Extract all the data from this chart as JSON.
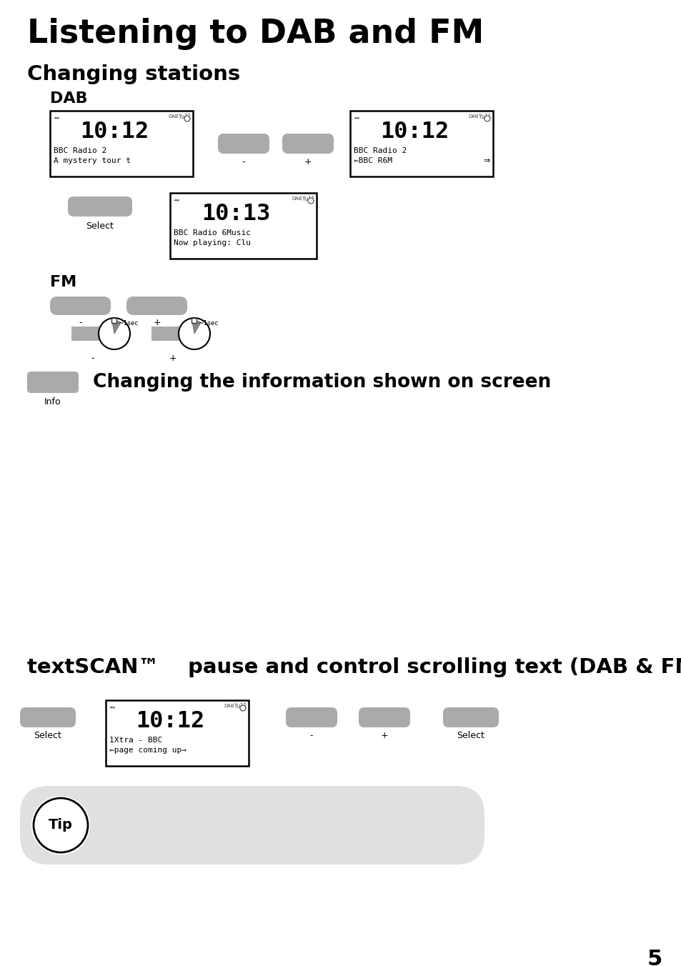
{
  "title": "Listening to DAB and FM",
  "subtitle1": "Changing stations",
  "dab_label": "DAB",
  "fm_label": "FM",
  "bg_color": "#ffffff",
  "button_color": "#aaaaaa",
  "screen_bg": "#ffffff",
  "screen_border": "#000000",
  "tip_bg": "#e0e0e0",
  "text_color": "#000000",
  "page_number": "5",
  "textscan_line1": "textSCAN™",
  "textscan_line2": "pause and control scrolling text (DAB & FM)",
  "info_label": "Changing the information shown on screen",
  "tip_text": "Tip",
  "select_label": "Select",
  "info_btn_label": "Info",
  "minus_label": "-",
  "plus_label": "+"
}
